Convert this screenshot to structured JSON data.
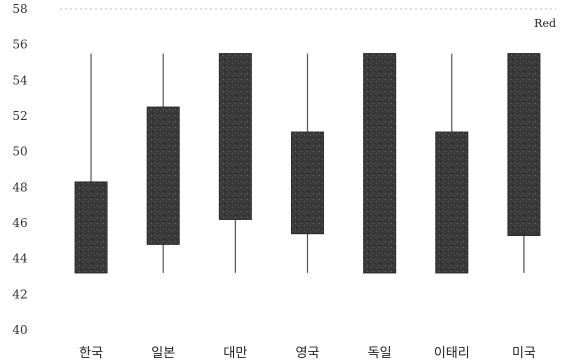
{
  "chart_data": {
    "type": "box",
    "legend": {
      "label": "Red",
      "position": "top-right"
    },
    "ylim": [
      40,
      58
    ],
    "yticks": [
      40,
      42,
      44,
      46,
      48,
      50,
      52,
      54,
      56,
      58
    ],
    "ytick_labels": [
      "40",
      "42",
      "44",
      "46",
      "48",
      "50",
      "52",
      "54",
      "56",
      "58"
    ],
    "categories": [
      "한국",
      "일본",
      "대만",
      "영국",
      "독일",
      "이태리",
      "미국"
    ],
    "boxes": [
      {
        "whisker_low": 43.2,
        "q1": 43.2,
        "q3": 48.3,
        "whisker_high": 55.5
      },
      {
        "whisker_low": 43.2,
        "q1": 44.8,
        "q3": 52.5,
        "whisker_high": 55.5
      },
      {
        "whisker_low": 43.2,
        "q1": 46.2,
        "q3": 55.5,
        "whisker_high": 55.5
      },
      {
        "whisker_low": 43.2,
        "q1": 45.4,
        "q3": 51.1,
        "whisker_high": 55.5
      },
      {
        "whisker_low": 43.2,
        "q1": 43.2,
        "q3": 55.5,
        "whisker_high": 55.5
      },
      {
        "whisker_low": 43.2,
        "q1": 43.2,
        "q3": 51.1,
        "whisker_high": 55.5
      },
      {
        "whisker_low": 43.2,
        "q1": 45.3,
        "q3": 55.5,
        "whisker_high": 55.5
      }
    ],
    "colors": {
      "box": "#3a3a3a",
      "whisker": "#555555",
      "grid": "#bdbdbd"
    }
  }
}
